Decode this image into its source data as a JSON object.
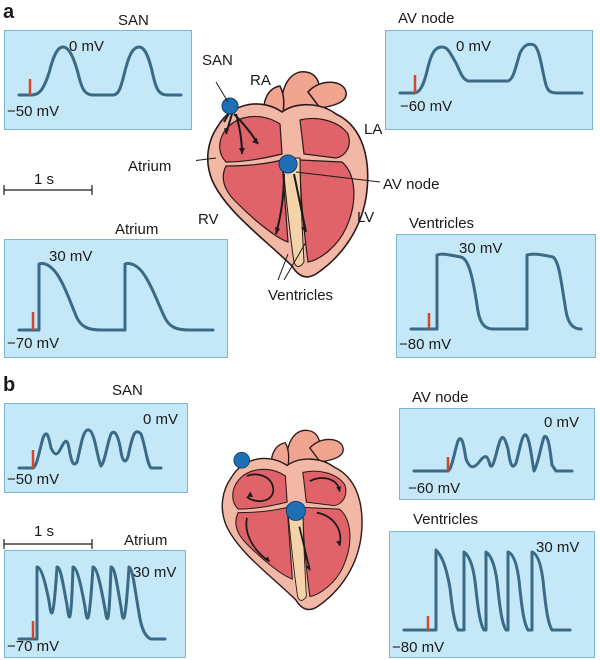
{
  "panels": {
    "a": {
      "letter": "a",
      "san": {
        "title": "SAN",
        "top_value": "0 mV",
        "bottom_value": "−50 mV"
      },
      "av_node": {
        "title": "AV node",
        "top_value": "0 mV",
        "bottom_value": "−60 mV"
      },
      "atrium": {
        "title": "Atrium",
        "top_value": "30 mV",
        "bottom_value": "−70 mV"
      },
      "ventricles": {
        "title": "Ventricles",
        "top_value": "30 mV",
        "bottom_value": "−80 mV"
      },
      "scale_bar": "1 s",
      "heart_labels": {
        "san": "SAN",
        "ra": "RA",
        "la": "LA",
        "atrium": "Atrium",
        "av_node": "AV node",
        "rv": "RV",
        "lv": "LV",
        "ventricles": "Ventricles"
      }
    },
    "b": {
      "letter": "b",
      "san": {
        "title": "SAN",
        "top_value": "0 mV",
        "bottom_value": "−50 mV"
      },
      "av_node": {
        "title": "AV node",
        "top_value": "0 mV",
        "bottom_value": "−60 mV"
      },
      "atrium": {
        "title": "Atrium",
        "top_value": "30 mV",
        "bottom_value": "−70 mV"
      },
      "ventricles": {
        "title": "Ventricles",
        "top_value": "30 mV",
        "bottom_value": "−80 mV"
      },
      "scale_bar": "1 s"
    }
  },
  "colors": {
    "trace": "#3a6a86",
    "stimulus": "#d0472a",
    "panel_bg": "#c5e8f8",
    "node": "#1f6fb5",
    "heart_outer": "#f3b7a6",
    "heart_inner": "#e0636a"
  }
}
